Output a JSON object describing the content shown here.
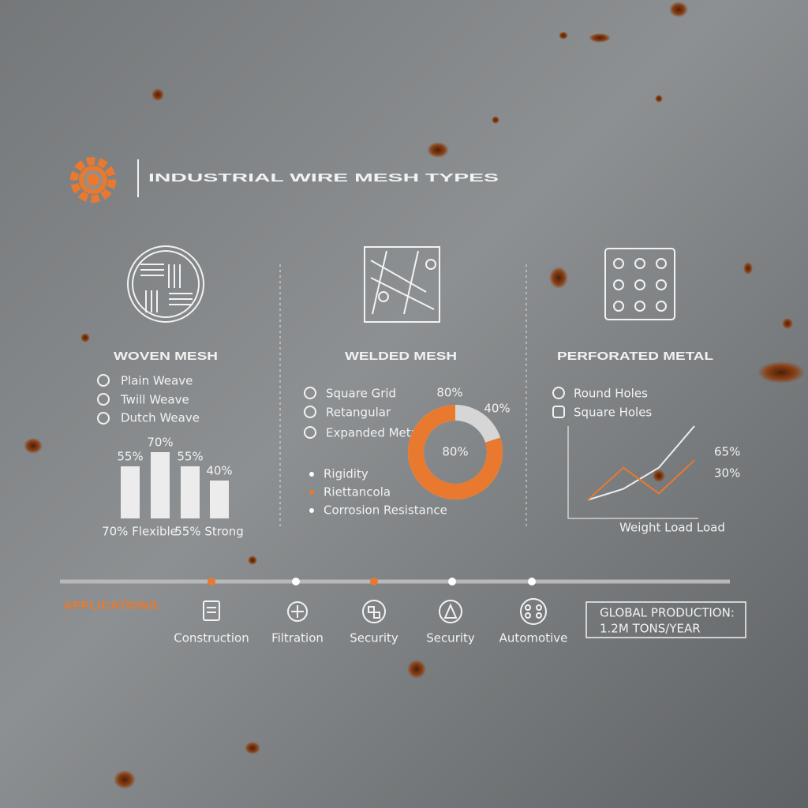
{
  "header": {
    "title": "INDUSTRIAL WIRE MESH TYPES"
  },
  "sections": [
    {
      "title": "WOVEN MESH",
      "items": [
        "Plain Weave",
        "Twill Weave",
        "Dutch Weave"
      ]
    },
    {
      "title": "WELDED MESH",
      "items": [
        "Square Grid",
        "Retangular",
        "Expanded Metal"
      ]
    },
    {
      "title": "PERFORATED METAL",
      "items": [
        "Round Holes",
        "Square Holes"
      ]
    }
  ],
  "chart_data": [
    {
      "type": "bar",
      "values": [
        55,
        70,
        55,
        40
      ],
      "value_labels": [
        "55%",
        "70%",
        "55%",
        "40%"
      ],
      "color": "#ececec",
      "ylim": [
        0,
        100
      ],
      "annotations": [
        "70% Flexible",
        "55% Strong"
      ]
    },
    {
      "type": "donut",
      "values": [
        80
      ],
      "value_labels": [
        "80%"
      ],
      "color": "#e8792f",
      "track_color": "#d6d6d6",
      "annotations": [
        "80%",
        "40%"
      ],
      "legend": [
        {
          "name": "Rigidity",
          "color": "#ffffff"
        },
        {
          "name": "Riettancola",
          "color": "#e8792f"
        },
        {
          "name": "Corrosion Resistance",
          "color": "#ffffff"
        }
      ]
    },
    {
      "type": "line",
      "categories": [
        null,
        null,
        null,
        null
      ],
      "series": [
        {
          "color": "#eeeeee",
          "values": [
            20,
            32,
            55,
            100
          ]
        },
        {
          "color": "#e8792f",
          "values": [
            20,
            55,
            27,
            63
          ]
        }
      ],
      "ylim": [
        0,
        100
      ],
      "x_label": "Weight Load Load",
      "annotations": [
        "65%",
        "30%"
      ]
    }
  ],
  "applications": {
    "title": "APPLICATIONS:",
    "items": [
      "Construction",
      "Filtration",
      "Security",
      "Security",
      "Automotive"
    ]
  },
  "stat": {
    "label": "GLOBAL PRODUCTION:",
    "value": "1.2M TONS/YEAR"
  }
}
